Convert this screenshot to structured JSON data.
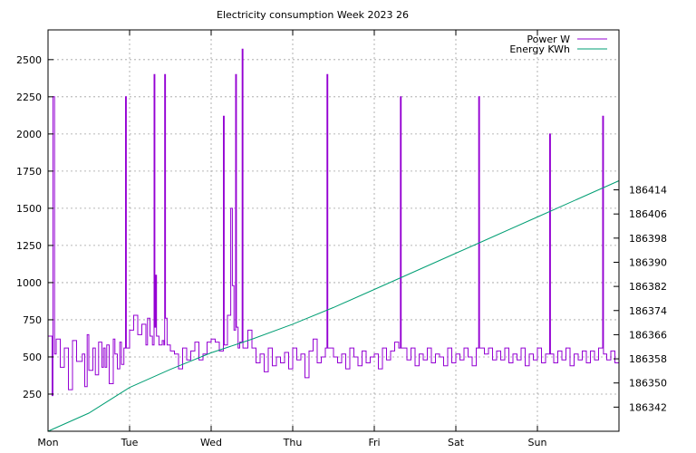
{
  "chart_data": {
    "type": "line",
    "title": "Electricity consumption Week 2023 26",
    "x_tick_labels": [
      "Mon",
      "Tue",
      "Wed",
      "Thu",
      "Fri",
      "Sat",
      "Sun"
    ],
    "xlim_days": [
      0,
      7
    ],
    "y_left_ticks": [
      250,
      500,
      750,
      1000,
      1250,
      1500,
      1750,
      2000,
      2250,
      2500
    ],
    "y_left_range": [
      0,
      2700
    ],
    "y_right_ticks": [
      186342,
      186350,
      186358,
      186366,
      186374,
      186382,
      186390,
      186398,
      186406,
      186414
    ],
    "y_right_range": [
      186334,
      186467
    ],
    "grid": true,
    "legend_position": "top-right",
    "series": [
      {
        "name": "Power W",
        "axis": "left",
        "color": "#9400d3",
        "style": "steps",
        "points": [
          [
            0.0,
            640
          ],
          [
            0.05,
            240
          ],
          [
            0.06,
            2250
          ],
          [
            0.08,
            520
          ],
          [
            0.1,
            620
          ],
          [
            0.15,
            430
          ],
          [
            0.2,
            560
          ],
          [
            0.25,
            280
          ],
          [
            0.3,
            610
          ],
          [
            0.35,
            470
          ],
          [
            0.42,
            520
          ],
          [
            0.45,
            300
          ],
          [
            0.48,
            650
          ],
          [
            0.5,
            410
          ],
          [
            0.55,
            560
          ],
          [
            0.58,
            380
          ],
          [
            0.62,
            600
          ],
          [
            0.66,
            430
          ],
          [
            0.68,
            560
          ],
          [
            0.7,
            430
          ],
          [
            0.72,
            580
          ],
          [
            0.75,
            320
          ],
          [
            0.8,
            620
          ],
          [
            0.82,
            520
          ],
          [
            0.85,
            420
          ],
          [
            0.88,
            600
          ],
          [
            0.9,
            450
          ],
          [
            0.93,
            560
          ],
          [
            0.95,
            2250
          ],
          [
            0.96,
            560
          ],
          [
            1.0,
            680
          ],
          [
            1.05,
            780
          ],
          [
            1.1,
            650
          ],
          [
            1.15,
            720
          ],
          [
            1.2,
            580
          ],
          [
            1.22,
            760
          ],
          [
            1.25,
            640
          ],
          [
            1.28,
            580
          ],
          [
            1.3,
            2400
          ],
          [
            1.31,
            700
          ],
          [
            1.32,
            1050
          ],
          [
            1.33,
            640
          ],
          [
            1.36,
            580
          ],
          [
            1.4,
            610
          ],
          [
            1.42,
            580
          ],
          [
            1.43,
            2400
          ],
          [
            1.44,
            760
          ],
          [
            1.46,
            580
          ],
          [
            1.5,
            540
          ],
          [
            1.55,
            520
          ],
          [
            1.6,
            420
          ],
          [
            1.65,
            560
          ],
          [
            1.7,
            480
          ],
          [
            1.75,
            540
          ],
          [
            1.8,
            600
          ],
          [
            1.85,
            480
          ],
          [
            1.9,
            520
          ],
          [
            1.95,
            600
          ],
          [
            2.0,
            620
          ],
          [
            2.05,
            600
          ],
          [
            2.1,
            540
          ],
          [
            2.15,
            2120
          ],
          [
            2.16,
            580
          ],
          [
            2.2,
            780
          ],
          [
            2.24,
            1500
          ],
          [
            2.26,
            980
          ],
          [
            2.28,
            680
          ],
          [
            2.3,
            2400
          ],
          [
            2.31,
            700
          ],
          [
            2.33,
            560
          ],
          [
            2.35,
            600
          ],
          [
            2.38,
            2570
          ],
          [
            2.39,
            560
          ],
          [
            2.45,
            680
          ],
          [
            2.5,
            560
          ],
          [
            2.55,
            460
          ],
          [
            2.6,
            520
          ],
          [
            2.65,
            400
          ],
          [
            2.7,
            560
          ],
          [
            2.75,
            440
          ],
          [
            2.8,
            500
          ],
          [
            2.85,
            460
          ],
          [
            2.9,
            530
          ],
          [
            2.95,
            420
          ],
          [
            3.0,
            560
          ],
          [
            3.05,
            480
          ],
          [
            3.1,
            520
          ],
          [
            3.15,
            360
          ],
          [
            3.2,
            540
          ],
          [
            3.25,
            620
          ],
          [
            3.3,
            460
          ],
          [
            3.35,
            500
          ],
          [
            3.4,
            560
          ],
          [
            3.42,
            2400
          ],
          [
            3.43,
            560
          ],
          [
            3.5,
            500
          ],
          [
            3.55,
            460
          ],
          [
            3.6,
            520
          ],
          [
            3.65,
            420
          ],
          [
            3.7,
            560
          ],
          [
            3.75,
            500
          ],
          [
            3.8,
            440
          ],
          [
            3.85,
            540
          ],
          [
            3.9,
            460
          ],
          [
            3.95,
            500
          ],
          [
            4.0,
            520
          ],
          [
            4.05,
            420
          ],
          [
            4.1,
            560
          ],
          [
            4.15,
            480
          ],
          [
            4.2,
            540
          ],
          [
            4.25,
            600
          ],
          [
            4.3,
            560
          ],
          [
            4.32,
            2250
          ],
          [
            4.33,
            560
          ],
          [
            4.4,
            480
          ],
          [
            4.45,
            560
          ],
          [
            4.5,
            440
          ],
          [
            4.55,
            520
          ],
          [
            4.6,
            480
          ],
          [
            4.65,
            560
          ],
          [
            4.7,
            460
          ],
          [
            4.75,
            520
          ],
          [
            4.8,
            500
          ],
          [
            4.85,
            440
          ],
          [
            4.9,
            560
          ],
          [
            4.95,
            460
          ],
          [
            5.0,
            520
          ],
          [
            5.05,
            480
          ],
          [
            5.1,
            560
          ],
          [
            5.15,
            500
          ],
          [
            5.2,
            440
          ],
          [
            5.25,
            560
          ],
          [
            5.28,
            2250
          ],
          [
            5.29,
            560
          ],
          [
            5.35,
            520
          ],
          [
            5.4,
            560
          ],
          [
            5.45,
            480
          ],
          [
            5.5,
            540
          ],
          [
            5.55,
            480
          ],
          [
            5.6,
            560
          ],
          [
            5.65,
            460
          ],
          [
            5.7,
            520
          ],
          [
            5.75,
            480
          ],
          [
            5.8,
            560
          ],
          [
            5.85,
            440
          ],
          [
            5.9,
            520
          ],
          [
            5.95,
            480
          ],
          [
            6.0,
            560
          ],
          [
            6.05,
            460
          ],
          [
            6.1,
            520
          ],
          [
            6.15,
            2000
          ],
          [
            6.16,
            520
          ],
          [
            6.2,
            460
          ],
          [
            6.25,
            540
          ],
          [
            6.3,
            480
          ],
          [
            6.35,
            560
          ],
          [
            6.4,
            440
          ],
          [
            6.45,
            520
          ],
          [
            6.5,
            480
          ],
          [
            6.55,
            540
          ],
          [
            6.6,
            460
          ],
          [
            6.65,
            540
          ],
          [
            6.7,
            480
          ],
          [
            6.75,
            560
          ],
          [
            6.8,
            2120
          ],
          [
            6.81,
            520
          ],
          [
            6.85,
            480
          ],
          [
            6.9,
            540
          ],
          [
            6.95,
            460
          ],
          [
            7.0,
            520
          ]
        ]
      },
      {
        "name": "Energy KWh",
        "axis": "right",
        "color": "#009e73",
        "style": "line",
        "points": [
          [
            0.0,
            186334.0
          ],
          [
            0.5,
            186340.0
          ],
          [
            1.0,
            186348.5
          ],
          [
            1.5,
            186354.5
          ],
          [
            2.0,
            186360.0
          ],
          [
            2.5,
            186364.5
          ],
          [
            3.0,
            186369.5
          ],
          [
            3.5,
            186375.0
          ],
          [
            4.0,
            186381.0
          ],
          [
            4.5,
            186387.0
          ],
          [
            5.0,
            186393.0
          ],
          [
            5.5,
            186399.0
          ],
          [
            6.0,
            186405.0
          ],
          [
            6.5,
            186411.0
          ],
          [
            7.0,
            186417.0
          ]
        ]
      }
    ]
  }
}
